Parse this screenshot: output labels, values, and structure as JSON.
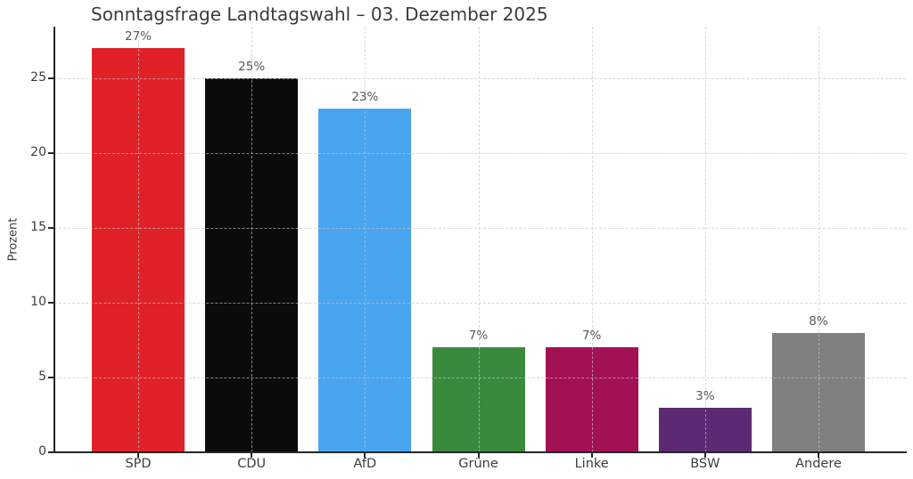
{
  "title": "Sonntagsfrage Landtagswahl – 03. Dezember 2025",
  "chart_data": {
    "type": "bar",
    "title": "Sonntagsfrage Landtagswahl – 03. Dezember 2025",
    "xlabel": "",
    "ylabel": "Prozent",
    "categories": [
      "SPD",
      "CDU",
      "AfD",
      "Grüne",
      "Linke",
      "BSW",
      "Andere"
    ],
    "values": [
      27,
      25,
      23,
      7,
      7,
      3,
      8
    ],
    "value_labels": [
      "27%",
      "25%",
      "23%",
      "7%",
      "7%",
      "3%",
      "8%"
    ],
    "bar_colors": [
      "#e02128",
      "#0b0b0b",
      "#4aa5f0",
      "#3a8a3e",
      "#a31155",
      "#5c2a72",
      "#808080"
    ],
    "yticks": [
      0,
      5,
      10,
      15,
      20,
      25
    ],
    "ylim": [
      0,
      28.45
    ],
    "grid": "dashed, drawn above bars",
    "legend_position": "none",
    "background_color": "#ffffff",
    "axis_color": "#262626",
    "grid_color": "#cccccc",
    "title_color": "#3b3b3b",
    "tick_text_color": "#3d3d3d",
    "value_label_color": "#595959"
  }
}
